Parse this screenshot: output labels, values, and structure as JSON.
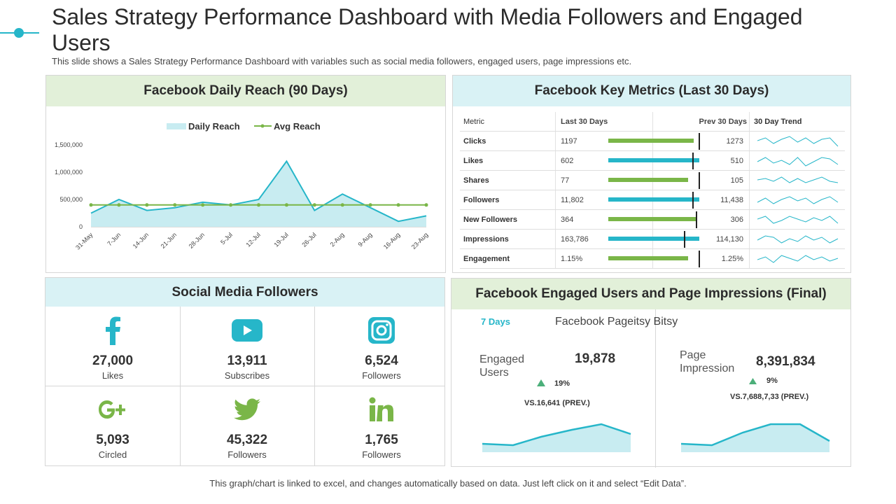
{
  "header": {
    "title": "Sales Strategy Performance Dashboard with Media Followers and Engaged Users",
    "subtitle": "This slide shows a Sales Strategy Performance Dashboard with variables such as social media followers, engaged users, page impressions etc."
  },
  "footer": "This graph/chart is linked to excel, and changes automatically based on data. Just left click on it and select “Edit Data”.",
  "colors": {
    "accent_cyan": "#26b6c9",
    "accent_green": "#7ab648",
    "header_green": "#e2f0d9",
    "header_cyan": "#d9f2f5"
  },
  "reach": {
    "title": "Facebook Daily Reach (90 Days)",
    "legend": {
      "daily": "Daily Reach",
      "avg": "Avg Reach"
    },
    "chart_data": {
      "type": "area",
      "x": [
        "31-May",
        "7-Jun",
        "14-Jun",
        "21-Jun",
        "28-Jun",
        "5-Jul",
        "12-Jul",
        "19-Jul",
        "26-Jul",
        "2-Aug",
        "9-Aug",
        "16-Aug",
        "23-Aug"
      ],
      "xtick_labels": [
        "31-May",
        "7-Jun",
        "14-Jun",
        "21-Jun",
        "28-Jun",
        "5-Jul",
        "12-Jul",
        "19-Jul",
        "26-Jul",
        "2-Aug",
        "9-Aug",
        "16-Aug",
        "23-Aug"
      ],
      "ytick_labels": [
        "1,500,000",
        "1,000,000",
        "500,000",
        "0"
      ],
      "ylim": [
        0,
        1500000
      ],
      "series": [
        {
          "name": "Daily Reach",
          "type": "area",
          "values": [
            250000,
            500000,
            300000,
            350000,
            450000,
            400000,
            500000,
            1200000,
            300000,
            600000,
            350000,
            100000,
            200000
          ]
        },
        {
          "name": "Avg Reach",
          "type": "line",
          "values": [
            400000,
            400000,
            400000,
            400000,
            400000,
            400000,
            400000,
            400000,
            400000,
            400000,
            400000,
            400000,
            400000
          ]
        }
      ]
    }
  },
  "metrics": {
    "title": "Facebook Key Metrics (Last 30 Days)",
    "headers": {
      "metric": "Metric",
      "last": "Last 30 Days",
      "prev": "Prev 30 Days",
      "trend": "30 Day Trend"
    },
    "rows": [
      {
        "metric": "Clicks",
        "last": "1197",
        "prev": "1273",
        "bar": 0.94,
        "target": 1.0,
        "bar_color": "#7ab648"
      },
      {
        "metric": "Likes",
        "last": "602",
        "prev": "510",
        "bar": 1.0,
        "target": 0.93,
        "bar_color": "#26b6c9"
      },
      {
        "metric": "Shares",
        "last": "77",
        "prev": "105",
        "bar": 0.88,
        "target": 1.0,
        "bar_color": "#7ab648"
      },
      {
        "metric": "Followers",
        "last": "11,802",
        "prev": "11,438",
        "bar": 1.0,
        "target": 0.93,
        "bar_color": "#26b6c9"
      },
      {
        "metric": "New Followers",
        "last": "364",
        "prev": "306",
        "bar": 0.98,
        "target": 0.97,
        "bar_color": "#7ab648"
      },
      {
        "metric": "Impressions",
        "last": "163,786",
        "prev": "114,130",
        "bar": 1.0,
        "target": 0.84,
        "bar_color": "#26b6c9"
      },
      {
        "metric": "Engagement",
        "last": "1.15%",
        "prev": "1.25%",
        "bar": 0.88,
        "target": 1.0,
        "bar_color": "#7ab648"
      }
    ]
  },
  "social": {
    "title": "Social Media Followers",
    "items": [
      {
        "icon": "facebook-icon",
        "value": "27,000",
        "label": "Likes",
        "color": "#26b6c9"
      },
      {
        "icon": "youtube-icon",
        "value": "13,911",
        "label": "Subscribes",
        "color": "#26b6c9"
      },
      {
        "icon": "instagram-icon",
        "value": "6,524",
        "label": "Followers",
        "color": "#26b6c9"
      },
      {
        "icon": "google-plus-icon",
        "value": "5,093",
        "label": "Circled",
        "color": "#7ab648"
      },
      {
        "icon": "twitter-icon",
        "value": "45,322",
        "label": "Followers",
        "color": "#7ab648"
      },
      {
        "icon": "linkedin-icon",
        "value": "1,765",
        "label": "Followers",
        "color": "#7ab648"
      }
    ]
  },
  "engaged": {
    "title": "Facebook Engaged Users and Page Impressions (Final)",
    "period": "7 Days",
    "page_name": "Facebook Pageitsy Bitsy",
    "users": {
      "label_1": "Engaged",
      "label_2": "Users",
      "value": "19,878",
      "change": "19%",
      "prev": "VS.16,641 (PREV.)"
    },
    "impressions": {
      "label_1": "Page",
      "label_2": "Impression",
      "value": "8,391,834",
      "change": "9%",
      "prev": "VS.7,688,7,33 (PREV.)"
    }
  }
}
